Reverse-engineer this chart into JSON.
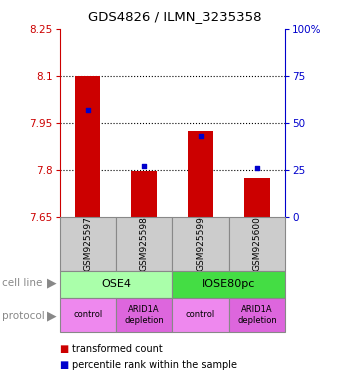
{
  "title": "GDS4826 / ILMN_3235358",
  "samples": [
    "GSM925597",
    "GSM925598",
    "GSM925599",
    "GSM925600"
  ],
  "bar_values": [
    8.1,
    7.795,
    7.925,
    7.775
  ],
  "bar_bottom": 7.65,
  "percentile_values": [
    57,
    27,
    43,
    26
  ],
  "ylim": [
    7.65,
    8.25
  ],
  "yticks": [
    7.65,
    7.8,
    7.95,
    8.1,
    8.25
  ],
  "bar_color": "#cc0000",
  "percentile_color": "#0000cc",
  "cell_lines": [
    {
      "label": "OSE4",
      "span": [
        0,
        2
      ],
      "color": "#aaffaa"
    },
    {
      "label": "IOSE80pc",
      "span": [
        2,
        4
      ],
      "color": "#44dd44"
    }
  ],
  "protocols": [
    {
      "label": "control",
      "span": [
        0,
        1
      ],
      "color": "#ee88ee"
    },
    {
      "label": "ARID1A\ndepletion",
      "span": [
        1,
        2
      ],
      "color": "#dd66dd"
    },
    {
      "label": "control",
      "span": [
        2,
        3
      ],
      "color": "#ee88ee"
    },
    {
      "label": "ARID1A\ndepletion",
      "span": [
        3,
        4
      ],
      "color": "#dd66dd"
    }
  ],
  "legend_red_label": "transformed count",
  "legend_blue_label": "percentile rank within the sample",
  "cell_line_label": "cell line",
  "protocol_label": "protocol",
  "left_axis_color": "#cc0000",
  "right_axis_color": "#0000cc",
  "bar_width": 0.45,
  "dotted_line_yticks": [
    7.8,
    7.95,
    8.1
  ],
  "sample_box_color": "#cccccc",
  "right_yticks": [
    0,
    25,
    50,
    75,
    100
  ],
  "right_yticklabels": [
    "0",
    "25",
    "50",
    "75",
    "100%"
  ]
}
